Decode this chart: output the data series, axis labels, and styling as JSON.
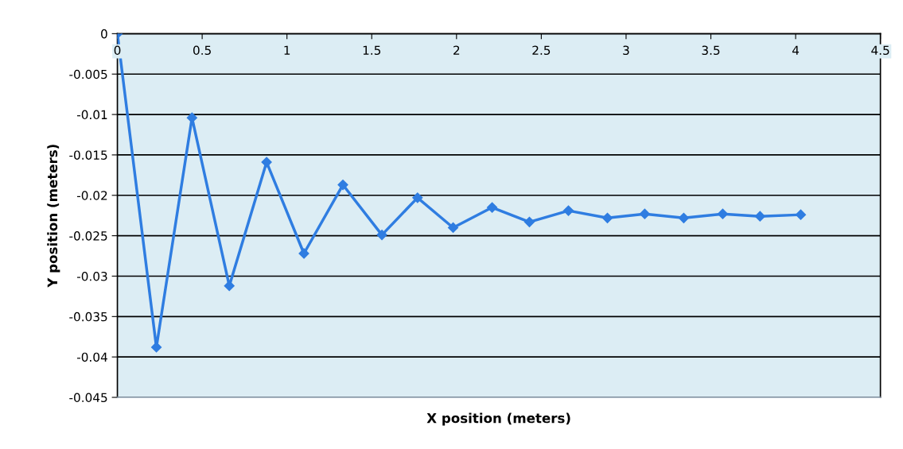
{
  "chart_data": {
    "type": "line",
    "xlabel": "X position (meters)",
    "ylabel": "Y position (meters)",
    "series": [
      {
        "color": "#2f7de1",
        "x": [
          0,
          0.23,
          0.44,
          0.66,
          0.88,
          1.1,
          1.33,
          1.56,
          1.77,
          1.98,
          2.21,
          2.43,
          2.66,
          2.89,
          3.11,
          3.34,
          3.57,
          3.79,
          4.03
        ],
        "values": [
          0,
          -0.0388,
          -0.0104,
          -0.0312,
          -0.0159,
          -0.0272,
          -0.0187,
          -0.0249,
          -0.0203,
          -0.024,
          -0.0215,
          -0.0233,
          -0.0219,
          -0.0228,
          -0.0223,
          -0.0228,
          -0.0223,
          -0.0226,
          -0.0224
        ]
      }
    ],
    "xlim": [
      0,
      4.5
    ],
    "xticks": [
      0,
      0.5,
      1,
      1.5,
      2,
      2.5,
      3,
      3.5,
      4,
      4.5
    ],
    "ylim": [
      -0.045,
      0
    ],
    "yticks": [
      {
        "value": 0,
        "label": "0"
      },
      -0.005,
      -0.01,
      -0.015,
      -0.02,
      -0.025,
      -0.03,
      -0.035,
      -0.04,
      -0.045
    ],
    "grid": "y",
    "marker": "diamond",
    "line_style": "solid",
    "legend": false
  }
}
